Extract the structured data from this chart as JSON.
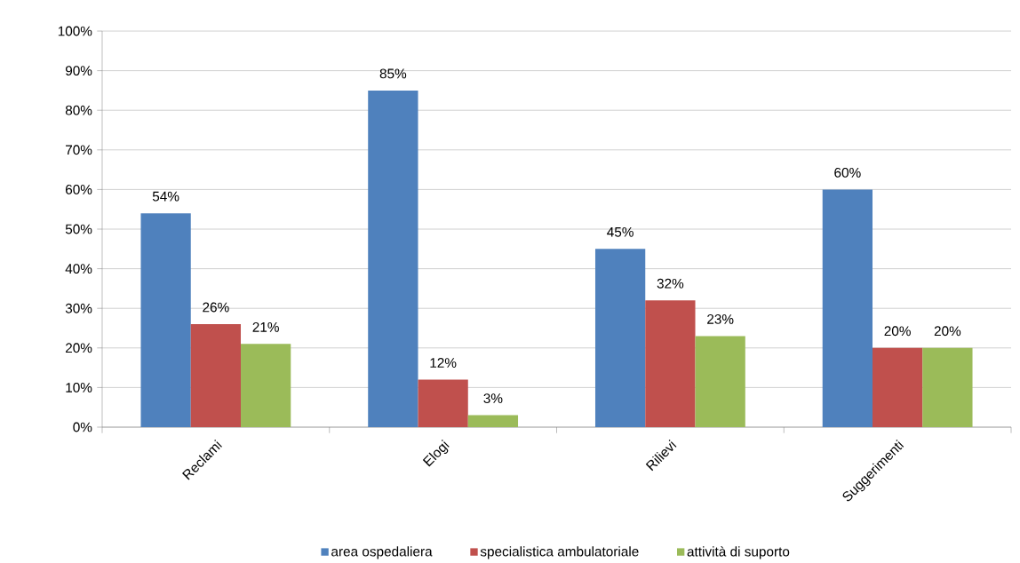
{
  "chart_data": {
    "type": "bar",
    "categories": [
      "Reclami",
      "Elogi",
      "Rilievi",
      "Suggerimenti"
    ],
    "series": [
      {
        "name": "area ospedaliera",
        "color": "#4f81bd",
        "values": [
          54,
          85,
          45,
          60
        ],
        "value_labels": [
          "54%",
          "85%",
          "45%",
          "60%"
        ]
      },
      {
        "name": "specialistica ambulatoriale",
        "color": "#c0504d",
        "values": [
          26,
          12,
          32,
          20
        ],
        "value_labels": [
          "26%",
          "12%",
          "32%",
          "20%"
        ]
      },
      {
        "name": "attività di suporto",
        "color": "#9bbb59",
        "values": [
          21,
          3,
          23,
          20
        ],
        "value_labels": [
          "21%",
          "3%",
          "23%",
          "20%"
        ]
      }
    ],
    "ylim": [
      0,
      100
    ],
    "yticks": [
      {
        "value": 0,
        "label": "0%"
      },
      {
        "value": 10,
        "label": "10%"
      },
      {
        "value": 20,
        "label": "20%"
      },
      {
        "value": 30,
        "label": "30%"
      },
      {
        "value": 40,
        "label": "40%"
      },
      {
        "value": 50,
        "label": "50%"
      },
      {
        "value": 60,
        "label": "60%"
      },
      {
        "value": 70,
        "label": "70%"
      },
      {
        "value": 80,
        "label": "80%"
      },
      {
        "value": 90,
        "label": "90%"
      },
      {
        "value": 100,
        "label": "100%"
      }
    ],
    "grid": "y",
    "legend": "bottom"
  }
}
